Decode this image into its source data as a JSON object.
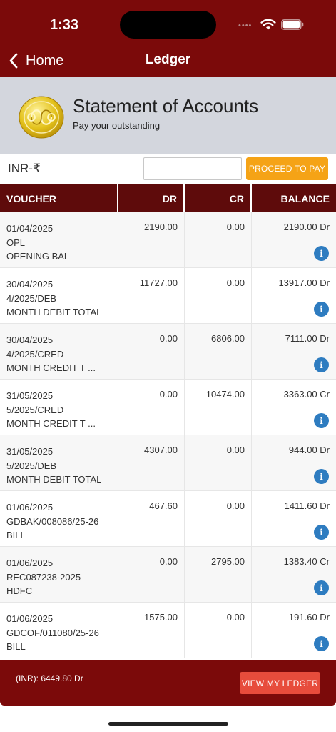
{
  "status_bar": {
    "time": "1:33"
  },
  "nav": {
    "back_label": "Home",
    "title": "Ledger"
  },
  "banner": {
    "title": "Statement of Accounts",
    "subtitle": "Pay your outstanding"
  },
  "payment": {
    "currency_label": "INR-₹",
    "amount_value": "",
    "proceed_label": "PROCEED TO PAY"
  },
  "table": {
    "headers": {
      "voucher": "VOUCHER",
      "dr": "DR",
      "cr": "CR",
      "balance": "BALANCE"
    },
    "rows": [
      {
        "date": "01/04/2025",
        "ref": "OPL",
        "desc": "OPENING BAL",
        "dr": "2190.00",
        "cr": "0.00",
        "balance": "2190.00 Dr"
      },
      {
        "date": "30/04/2025",
        "ref": "4/2025/DEB",
        "desc": "MONTH DEBIT TOTAL",
        "dr": "11727.00",
        "cr": "0.00",
        "balance": "13917.00 Dr"
      },
      {
        "date": "30/04/2025",
        "ref": "4/2025/CRED",
        "desc": "MONTH CREDIT T ...",
        "dr": "0.00",
        "cr": "6806.00",
        "balance": "7111.00 Dr"
      },
      {
        "date": "31/05/2025",
        "ref": "5/2025/CRED",
        "desc": "MONTH CREDIT T ...",
        "dr": "0.00",
        "cr": "10474.00",
        "balance": "3363.00 Cr"
      },
      {
        "date": "31/05/2025",
        "ref": "5/2025/DEB",
        "desc": "MONTH DEBIT TOTAL",
        "dr": "4307.00",
        "cr": "0.00",
        "balance": "944.00 Dr"
      },
      {
        "date": "01/06/2025",
        "ref": "GDBAK/008086/25-26",
        "desc": "BILL",
        "dr": "467.60",
        "cr": "0.00",
        "balance": "1411.60 Dr"
      },
      {
        "date": "01/06/2025",
        "ref": "REC087238-2025",
        "desc": "HDFC",
        "dr": "0.00",
        "cr": "2795.00",
        "balance": "1383.40 Cr"
      },
      {
        "date": "01/06/2025",
        "ref": "GDCOF/011080/25-26",
        "desc": "BILL",
        "dr": "1575.00",
        "cr": "0.00",
        "balance": "191.60 Dr"
      }
    ],
    "info_icon": "info-icon"
  },
  "footer": {
    "total": "(INR): 6449.80 Dr",
    "view_ledger_label": "VIEW MY LEDGER"
  },
  "colors": {
    "brand": "#7b0a0a",
    "header": "#5e0b0b",
    "proceed": "#f5a316",
    "view_ledger": "#e74c3c",
    "info": "#2e7cc0"
  }
}
